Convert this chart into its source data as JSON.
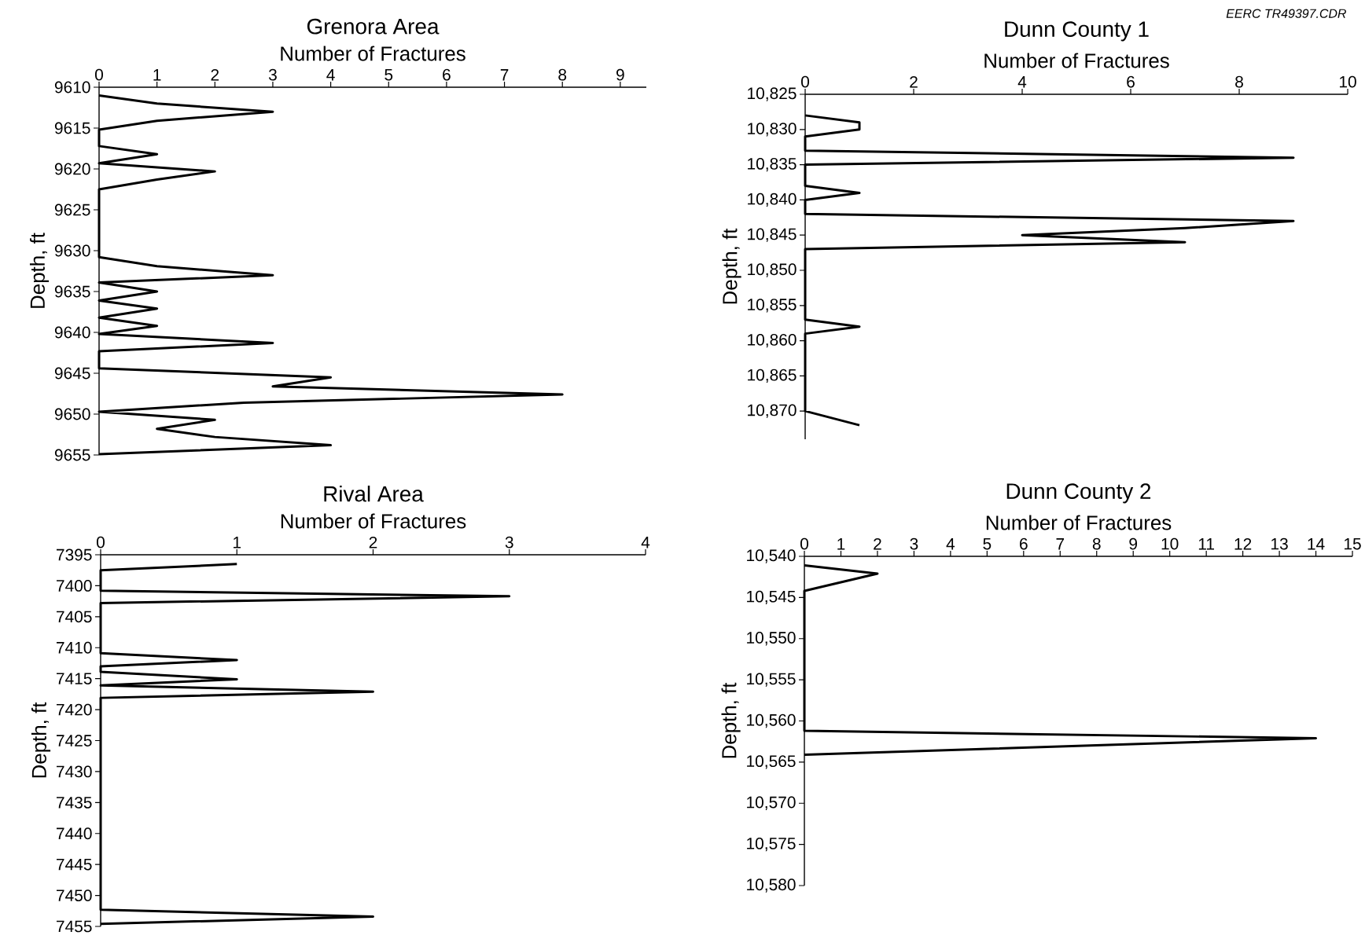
{
  "chart_data": [
    {
      "type": "line",
      "title": "Grenora Area",
      "xlabel": "Number of Fractures",
      "ylabel": "Depth, ft",
      "color": "#000000",
      "x": [
        0,
        1,
        3,
        1,
        0,
        0,
        1,
        0,
        2,
        1,
        0,
        0,
        1,
        3,
        0,
        1,
        0,
        1,
        0,
        1,
        0,
        3,
        0,
        0,
        4,
        3,
        8,
        2.5,
        0,
        2,
        1,
        2,
        4,
        0
      ],
      "values": [
        9611,
        9612,
        9613,
        9614.1,
        9615.2,
        9617.2,
        9618.2,
        9619.3,
        9620.3,
        9621.3,
        9622.5,
        9630.8,
        9631.9,
        9633,
        9633.9,
        9635,
        9636.1,
        9637.1,
        9638.2,
        9639.2,
        9640.2,
        9641.3,
        9642.3,
        9644.4,
        9645.5,
        9646.6,
        9647.6,
        9648.6,
        9649.7,
        9650.7,
        9651.8,
        9652.8,
        9653.8,
        9654.9
      ],
      "xlim": [
        0,
        9.45
      ],
      "xticks": [
        0,
        1,
        2,
        3,
        4,
        5,
        6,
        7,
        8,
        9
      ],
      "ylim": [
        9655,
        9610
      ],
      "yticks": [
        9610,
        9615,
        9620,
        9625,
        9630,
        9635,
        9640,
        9645,
        9650,
        9655
      ]
    },
    {
      "type": "line",
      "title": "Dunn County 1",
      "xlabel": "Number of Fractures",
      "ylabel": "Depth, ft",
      "color": "#000000",
      "x": [
        0,
        1,
        1,
        0,
        0,
        9,
        0,
        0,
        1,
        0,
        0,
        9,
        7,
        4,
        7,
        0,
        0,
        1,
        0,
        0,
        1
      ],
      "values": [
        10828,
        10829,
        10830,
        10831,
        10833,
        10834,
        10835,
        10838,
        10839,
        10840,
        10842,
        10843,
        10844,
        10845,
        10846,
        10847,
        10857,
        10858,
        10859,
        10870,
        10872
      ],
      "xlim": [
        0,
        10
      ],
      "xticks": [
        0,
        2,
        4,
        6,
        8,
        10
      ],
      "ylim": [
        10874,
        10825
      ],
      "yticks": [
        {
          "value": 10825,
          "label": "10,825"
        },
        {
          "value": 10830,
          "label": "10,830"
        },
        {
          "value": 10835,
          "label": "10,835"
        },
        {
          "value": 10840,
          "label": "10,840"
        },
        {
          "value": 10845,
          "label": "10,845"
        },
        {
          "value": 10850,
          "label": "10,850"
        },
        {
          "value": 10855,
          "label": "10,855"
        },
        {
          "value": 10860,
          "label": "10,860"
        },
        {
          "value": 10865,
          "label": "10,865"
        },
        {
          "value": 10870,
          "label": "10,870"
        }
      ],
      "annotations": [
        "EERC  TR49397.CDR"
      ]
    },
    {
      "type": "line",
      "title": "Rival Area",
      "xlabel": "Number of Fractures",
      "ylabel": "Depth, ft",
      "color": "#000000",
      "x": [
        1,
        0,
        0,
        3,
        0,
        0,
        1,
        0,
        0,
        1,
        0,
        2,
        0,
        0,
        2,
        0
      ],
      "values": [
        7396.5,
        7397.5,
        7400.8,
        7401.7,
        7402.8,
        7410.9,
        7412,
        7413,
        7413.9,
        7415.1,
        7416.1,
        7417.1,
        7418.1,
        7452.3,
        7453.4,
        7454.6
      ],
      "xlim": [
        0,
        4
      ],
      "xticks": [
        0,
        1,
        2,
        3,
        4
      ],
      "ylim": [
        7455,
        7395
      ],
      "yticks": [
        7395,
        7400,
        7405,
        7410,
        7415,
        7420,
        7425,
        7430,
        7435,
        7440,
        7445,
        7450,
        7455
      ]
    },
    {
      "type": "line",
      "title": "Dunn County 2",
      "xlabel": "Number of Fractures",
      "ylabel": "Depth, ft",
      "color": "#000000",
      "x": [
        0,
        2,
        0,
        0,
        14,
        0
      ],
      "values": [
        10541.1,
        10542.1,
        10544.2,
        10561.2,
        10562.1,
        10564.1
      ],
      "xlim": [
        0,
        15
      ],
      "xticks": [
        0,
        1,
        2,
        3,
        4,
        5,
        6,
        7,
        8,
        9,
        10,
        11,
        12,
        13,
        14,
        15
      ],
      "ylim": [
        10580,
        10540
      ],
      "yticks": [
        {
          "value": 10540,
          "label": "10,540"
        },
        {
          "value": 10545,
          "label": "10,545"
        },
        {
          "value": 10550,
          "label": "10,550"
        },
        {
          "value": 10555,
          "label": "10,555"
        },
        {
          "value": 10560,
          "label": "10,560"
        },
        {
          "value": 10565,
          "label": "10,565"
        },
        {
          "value": 10570,
          "label": "10,570"
        },
        {
          "value": 10575,
          "label": "10,575"
        },
        {
          "value": 10580,
          "label": "10,580"
        }
      ]
    }
  ]
}
